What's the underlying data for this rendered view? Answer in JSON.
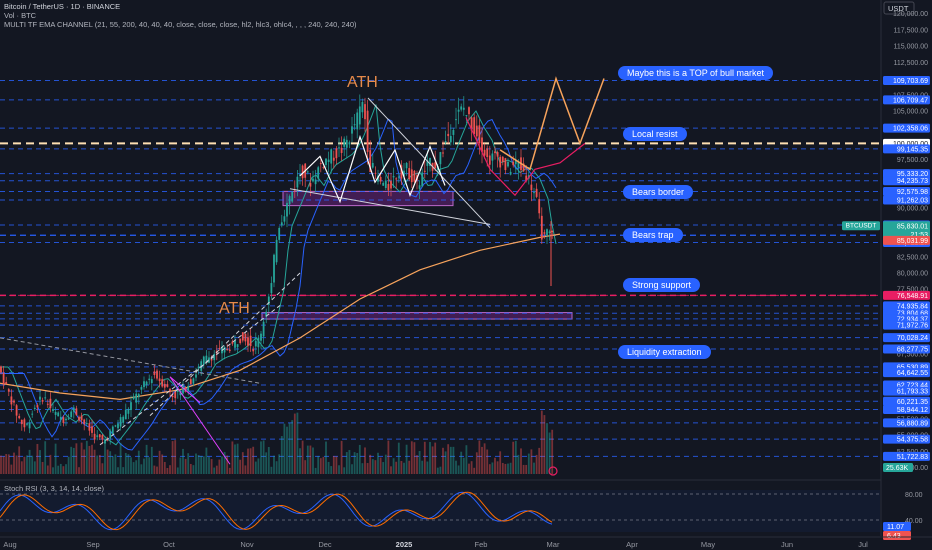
{
  "header": {
    "symbol_line": "Bitcoin / TetherUS · 1D · BINANCE",
    "volume_line": "Vol · BTC",
    "ema_line": "MULTI TF EMA CHANNEL (21, 55, 200, 40, 40, 40, close, close, close, hl2, hlc3, ohlc4, , , , 240, 240, 240)",
    "quote_currency": "USDT",
    "rsi_line": "Stoch RSI (3, 3, 14, 14, close)"
  },
  "annotations": {
    "ath_top": "ATH",
    "ath_mid": "ATH",
    "notes": [
      {
        "id": "top",
        "text": "Maybe this is a TOP of bull market"
      },
      {
        "id": "resist",
        "text": "Local resist"
      },
      {
        "id": "bears-border",
        "text": "Bears border"
      },
      {
        "id": "bears-trap",
        "text": "Bears trap"
      },
      {
        "id": "strong-support",
        "text": "Strong support"
      },
      {
        "id": "liquidity",
        "text": "Liquidity extraction"
      }
    ]
  },
  "chart_data": {
    "type": "candlestick",
    "x_ticks": [
      "Aug",
      "Sep",
      "Oct",
      "Nov",
      "Dec",
      "2025",
      "Feb",
      "Mar",
      "Apr",
      "May",
      "Jun",
      "Jul"
    ],
    "y_ticks": [
      "120,000.00",
      "117,500.00",
      "115,000.00",
      "112,500.00",
      "110,000.00",
      "107,500.00",
      "105,000.00",
      "102,500.00",
      "100,000.00",
      "97,500.00",
      "95,000.00",
      "92,500.00",
      "90,000.00",
      "87,500.00",
      "85,000.00",
      "82,500.00",
      "80,000.00",
      "77,500.00",
      "75,000.00",
      "72,500.00",
      "70,000.00",
      "67,500.00",
      "65,000.00",
      "62,500.00",
      "60,000.00",
      "57,500.00",
      "55,000.00",
      "52,500.00",
      "50,000.00"
    ],
    "y_range": [
      49000,
      121500
    ],
    "current_price": {
      "label": "BTCUSDT",
      "price": "85,830.01",
      "countdown": "21:53",
      "low": "85,031.99"
    },
    "price_levels": [
      {
        "price": "109,703.69",
        "value": 109703.69,
        "color": "#2962ff",
        "style": "dashed"
      },
      {
        "price": "106,709.47",
        "value": 106709.47,
        "color": "#2962ff",
        "style": "dashed"
      },
      {
        "price": "102,358.06",
        "value": 102358.06,
        "color": "#2962ff",
        "style": "dashed"
      },
      {
        "price": "100,000.00",
        "value": 100000,
        "color": "#ffe0b2",
        "style": "bold-dashed"
      },
      {
        "price": "99,145.35",
        "value": 99145.35,
        "color": "#2962ff",
        "style": "dashed"
      },
      {
        "price": "95,333.20",
        "value": 95333.2,
        "color": "#2962ff",
        "style": "dashed"
      },
      {
        "price": "94,235.73",
        "value": 94235.73,
        "color": "#2962ff",
        "style": "dashed"
      },
      {
        "price": "92,575.98",
        "value": 92575.98,
        "color": "#2962ff",
        "style": "dashed"
      },
      {
        "price": "91,262.03",
        "value": 91262.03,
        "color": "#2962ff",
        "style": "dashed"
      },
      {
        "price": "87,401.33",
        "value": 87401.33,
        "color": "#2962ff",
        "style": "dashed"
      },
      {
        "price": "84,712.27",
        "value": 84712.27,
        "color": "#2962ff",
        "style": "dashed"
      },
      {
        "price": "76,548.91",
        "value": 76548.91,
        "color": "#e91e63",
        "style": "dashed"
      },
      {
        "price": "74,935.84",
        "value": 74935.84,
        "color": "#2962ff",
        "style": "dashed"
      },
      {
        "price": "73,804.68",
        "value": 73804.68,
        "color": "#2962ff",
        "style": "dashed"
      },
      {
        "price": "72,934.37",
        "value": 72934.37,
        "color": "#2962ff",
        "style": "dashed"
      },
      {
        "price": "71,972.76",
        "value": 71972.76,
        "color": "#2962ff",
        "style": "dashed"
      },
      {
        "price": "70,028.24",
        "value": 70028.24,
        "color": "#2962ff",
        "style": "dashed"
      },
      {
        "price": "68,277.75",
        "value": 68277.75,
        "color": "#2962ff",
        "style": "dashed"
      },
      {
        "price": "65,530.89",
        "value": 65530.89,
        "color": "#2962ff",
        "style": "dashed"
      },
      {
        "price": "64,642.55",
        "value": 64642.55,
        "color": "#2962ff",
        "style": "dashed"
      },
      {
        "price": "62,723.44",
        "value": 62723.44,
        "color": "#2962ff",
        "style": "dashed"
      },
      {
        "price": "61,793.33",
        "value": 61793.33,
        "color": "#2962ff",
        "style": "dashed"
      },
      {
        "price": "60,221.35",
        "value": 60221.35,
        "color": "#2962ff",
        "style": "dashed"
      },
      {
        "price": "58,944.12",
        "value": 58944.12,
        "color": "#2962ff",
        "style": "dashed"
      },
      {
        "price": "56,880.89",
        "value": 56880.89,
        "color": "#2962ff",
        "style": "dashed"
      },
      {
        "price": "54,375.58",
        "value": 54375.58,
        "color": "#2962ff",
        "style": "dashed"
      },
      {
        "price": "51,722.83",
        "value": 51722.83,
        "color": "#2962ff",
        "style": "dashed"
      }
    ],
    "volume_label": "25.63K",
    "stoch_rsi": {
      "y_ticks": [
        "80.00",
        "40.00"
      ],
      "k_value": "11.07",
      "d_value": "6.43"
    },
    "colors": {
      "up": "#26a69a",
      "down": "#ef5350",
      "level": "#2962ff",
      "ema_fast": "#26a69a",
      "ema_mid": "#2962ff",
      "ema_slow": "#f7a35c",
      "rsi_k": "#2962ff",
      "rsi_d": "#ff6d00",
      "projection_orange": "#f7a35c",
      "projection_pink": "#e91e63"
    }
  }
}
